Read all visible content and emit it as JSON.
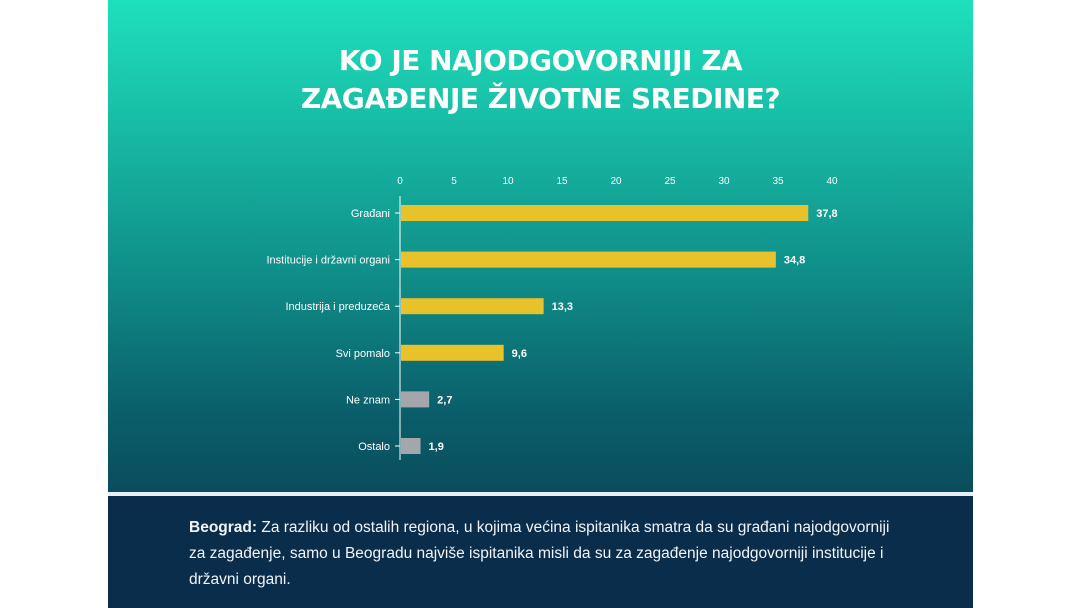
{
  "chart_data": {
    "type": "bar",
    "orientation": "horizontal",
    "title_lines": [
      "KO JE NAJODGOVORNIJI ZA",
      "ZAGAĐENJE ŽIVOTNE SREDINE?"
    ],
    "categories": [
      "Građani",
      "Institucije i državni organi",
      "Industrija i preduzeća",
      "Svi pomalo",
      "Ne znam",
      "Ostalo"
    ],
    "values": [
      37.8,
      34.8,
      13.3,
      9.6,
      2.7,
      1.9
    ],
    "value_labels": [
      "37,8",
      "34,8",
      "13,3",
      "9,6",
      "2,7",
      "1,9"
    ],
    "bar_colors": [
      "#e8c22a",
      "#e8c22a",
      "#e8c22a",
      "#e8c22a",
      "#a3a7ab",
      "#a3a7ab"
    ],
    "xlim": [
      0,
      40
    ],
    "xticks": [
      0,
      5,
      10,
      15,
      20,
      25,
      30,
      35,
      40
    ],
    "x_axis_position": "top",
    "grid": false,
    "legend": "none"
  },
  "footer": {
    "lead": "Beograd:",
    "text": " Za razliku od ostalih regiona, u kojima većina ispitanika smatra da su građani najodgovorniji za zagađenje, samo u Beogradu najviše ispitanika misli da su za zagađenje najodgovorniji institucije i državni organi."
  },
  "colors": {
    "panel_top": "#1fe0bd",
    "panel_bottom": "#0a4d5d",
    "footer_bg": "#0b2d4c",
    "bar_main": "#e8c22a",
    "bar_minor": "#a3a7ab"
  }
}
